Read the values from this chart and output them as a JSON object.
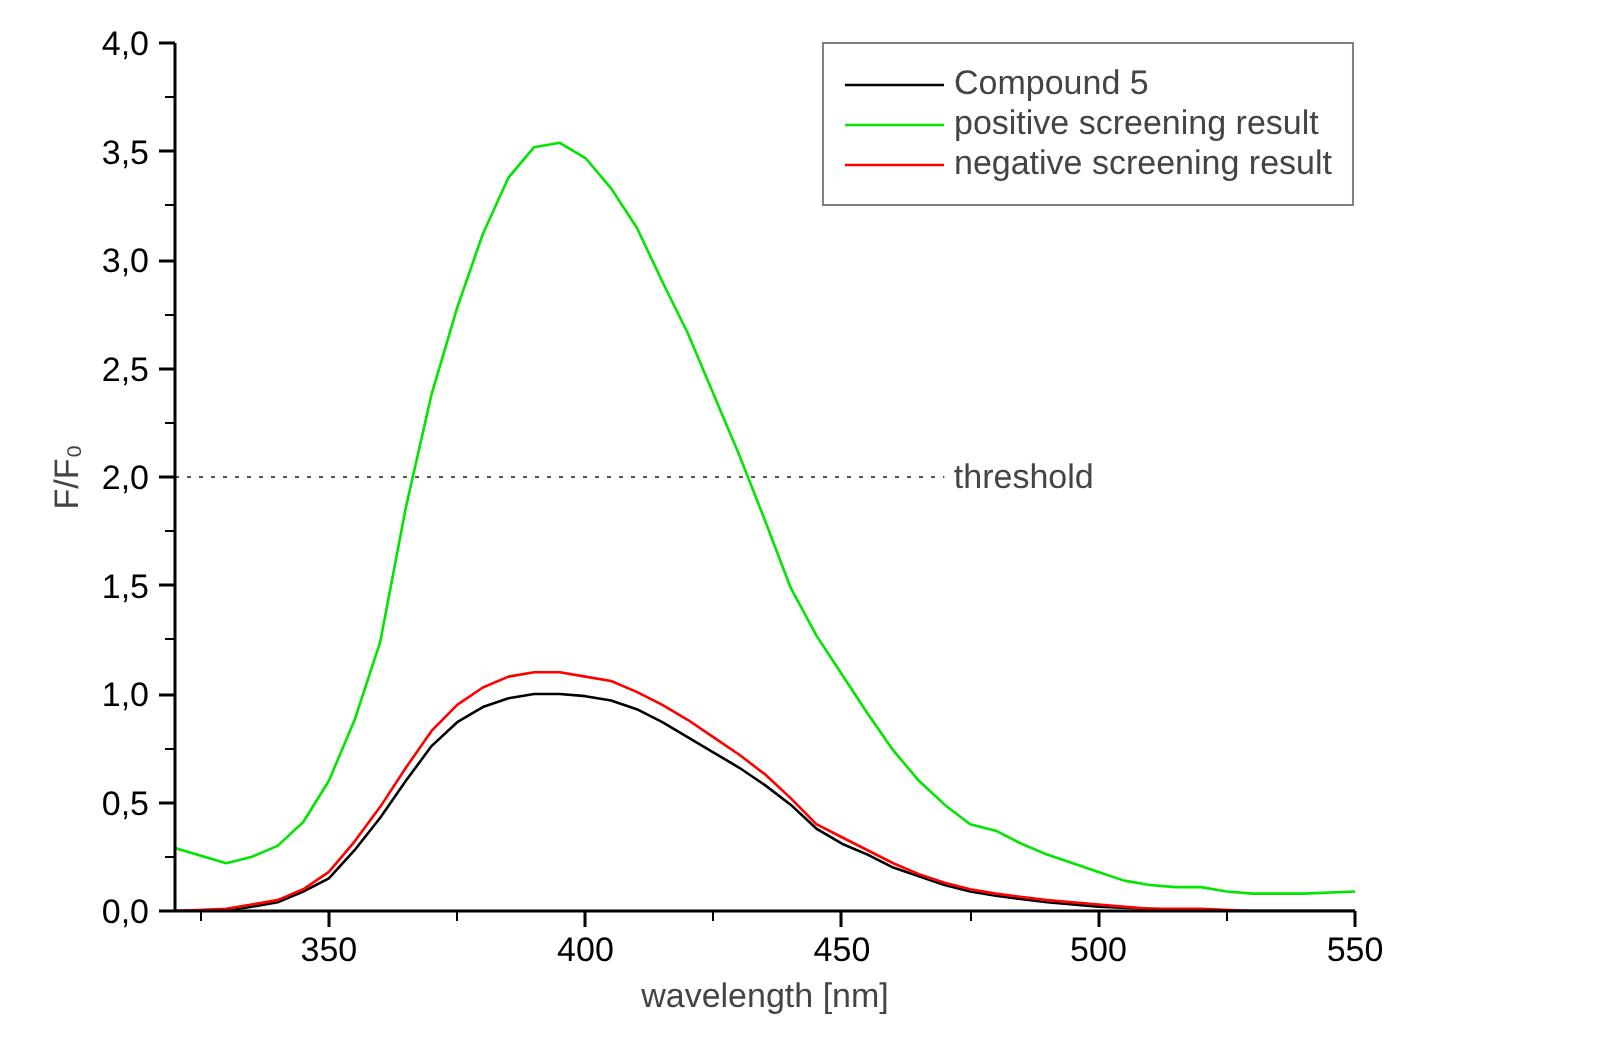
{
  "chart_data": {
    "type": "line",
    "xlabel": "wavelength [nm]",
    "ylabel": "F/F₀",
    "xlim": [
      320,
      550
    ],
    "ylim": [
      0,
      4
    ],
    "xticks": [
      {
        "value": 325,
        "label": null
      },
      350,
      {
        "value": 375,
        "label": null
      },
      400,
      {
        "value": 425,
        "label": null
      },
      450,
      {
        "value": 475,
        "label": null
      },
      500,
      {
        "value": 525,
        "label": null
      },
      550
    ],
    "yticks": [
      {
        "value": 0,
        "label": "0,0"
      },
      {
        "value": 0.25,
        "label": null
      },
      {
        "value": 0.5,
        "label": "0,5"
      },
      {
        "value": 0.75,
        "label": null
      },
      {
        "value": 1,
        "label": "1,0"
      },
      {
        "value": 1.25,
        "label": null
      },
      {
        "value": 1.5,
        "label": "1,5"
      },
      {
        "value": 1.75,
        "label": null
      },
      {
        "value": 2,
        "label": "2,0"
      },
      {
        "value": 2.25,
        "label": null
      },
      {
        "value": 2.5,
        "label": "2,5"
      },
      {
        "value": 2.75,
        "label": null
      },
      {
        "value": 3,
        "label": "3,0"
      },
      {
        "value": 3.25,
        "label": null
      },
      {
        "value": 3.5,
        "label": "3,5"
      },
      {
        "value": 3.75,
        "label": null
      },
      {
        "value": 4,
        "label": "4,0"
      }
    ],
    "grid": false,
    "legend": "top right",
    "marker": "none",
    "line_style": "solid",
    "ref_lines": [
      {
        "axis": "y",
        "value": 2,
        "label": "threshold",
        "color": "#555555",
        "line_style": "dotted"
      }
    ],
    "series": [
      {
        "name": "Compound 5",
        "color": "#000000",
        "x": [
          320,
          330,
          340,
          345,
          350,
          355,
          360,
          365,
          370,
          375,
          380,
          385,
          390,
          395,
          400,
          405,
          410,
          415,
          420,
          425,
          430,
          435,
          440,
          445,
          450,
          455,
          460,
          465,
          470,
          475,
          480,
          490,
          500,
          510,
          520,
          530,
          550
        ],
        "values": [
          0,
          0.0,
          0.04,
          0.09,
          0.15,
          0.28,
          0.43,
          0.6,
          0.76,
          0.87,
          0.94,
          0.98,
          1.0,
          1.0,
          0.99,
          0.97,
          0.93,
          0.87,
          0.8,
          0.73,
          0.66,
          0.58,
          0.49,
          0.38,
          0.31,
          0.26,
          0.2,
          0.16,
          0.12,
          0.09,
          0.07,
          0.04,
          0.02,
          0.01,
          0.0,
          0,
          0
        ]
      },
      {
        "name": "positive screening result",
        "color": "#00e600",
        "x": [
          320,
          330,
          335,
          340,
          345,
          350,
          355,
          360,
          365,
          370,
          375,
          380,
          385,
          390,
          395,
          400,
          405,
          410,
          415,
          420,
          425,
          430,
          435,
          440,
          445,
          450,
          455,
          460,
          465,
          470,
          475,
          480,
          485,
          490,
          495,
          500,
          505,
          510,
          515,
          520,
          525,
          530,
          540,
          550
        ],
        "values": [
          0.29,
          0.22,
          0.25,
          0.3,
          0.41,
          0.6,
          0.88,
          1.24,
          1.86,
          2.38,
          2.78,
          3.12,
          3.38,
          3.52,
          3.54,
          3.47,
          3.33,
          3.15,
          2.9,
          2.66,
          2.38,
          2.1,
          1.8,
          1.49,
          1.27,
          1.09,
          0.91,
          0.74,
          0.6,
          0.49,
          0.4,
          0.37,
          0.31,
          0.26,
          0.22,
          0.18,
          0.14,
          0.12,
          0.11,
          0.11,
          0.09,
          0.08,
          0.08,
          0.09
        ]
      },
      {
        "name": "negative screening result",
        "color": "#ff0000",
        "x": [
          320,
          330,
          340,
          345,
          350,
          355,
          360,
          365,
          370,
          375,
          380,
          385,
          390,
          395,
          400,
          405,
          410,
          415,
          420,
          425,
          430,
          435,
          440,
          445,
          450,
          455,
          460,
          465,
          470,
          475,
          480,
          490,
          500,
          510,
          520,
          530,
          550
        ],
        "values": [
          0,
          0.01,
          0.05,
          0.1,
          0.18,
          0.32,
          0.48,
          0.66,
          0.83,
          0.95,
          1.03,
          1.08,
          1.1,
          1.1,
          1.08,
          1.06,
          1.01,
          0.95,
          0.88,
          0.8,
          0.72,
          0.63,
          0.52,
          0.4,
          0.34,
          0.28,
          0.22,
          0.17,
          0.13,
          0.1,
          0.08,
          0.05,
          0.03,
          0.01,
          0.01,
          0,
          0
        ]
      }
    ]
  }
}
